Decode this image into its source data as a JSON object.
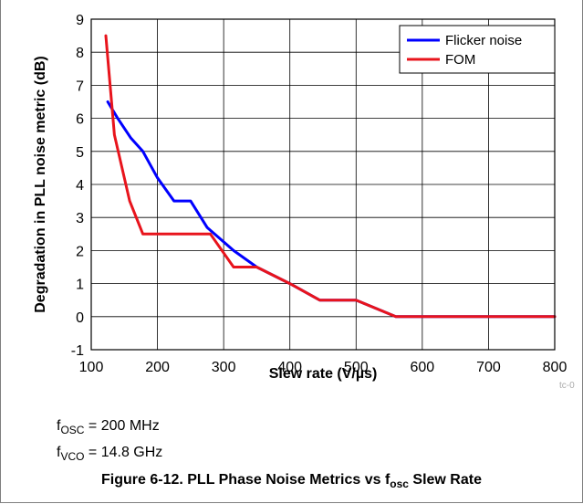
{
  "chart_data": {
    "type": "line",
    "xlabel": "Slew rate (V/µs)",
    "ylabel": "Degradation in PLL noise metric (dB)",
    "xlim": [
      100,
      800
    ],
    "ylim": [
      -1,
      9
    ],
    "xticks": [
      100,
      200,
      300,
      400,
      500,
      600,
      700,
      800
    ],
    "yticks": [
      -1,
      0,
      1,
      2,
      3,
      4,
      5,
      6,
      7,
      8,
      9
    ],
    "grid": true,
    "legend_position": "top-right",
    "series": [
      {
        "name": "Flicker noise",
        "color": "#0000ff",
        "x": [
          125,
          140,
          160,
          178,
          200,
          225,
          250,
          275,
          315,
          350,
          400,
          445,
          500,
          560,
          600,
          700,
          800
        ],
        "y": [
          6.5,
          6.0,
          5.4,
          5.0,
          4.2,
          3.5,
          3.5,
          2.7,
          2.0,
          1.5,
          1.0,
          0.5,
          0.5,
          0.0,
          0.0,
          0.0,
          0.0
        ]
      },
      {
        "name": "FOM",
        "color": "#e8141c",
        "x": [
          122,
          135,
          158,
          178,
          200,
          225,
          250,
          280,
          315,
          350,
          400,
          445,
          500,
          560,
          600,
          700,
          800
        ],
        "y": [
          8.5,
          5.5,
          3.5,
          2.5,
          2.5,
          2.5,
          2.5,
          2.5,
          1.5,
          1.5,
          1.0,
          0.5,
          0.5,
          0.0,
          0.0,
          0.0,
          0.0
        ]
      }
    ]
  },
  "tag": "tc-0",
  "conditions": [
    {
      "symbol": "f",
      "sub": "OSC",
      "value": " = 200 MHz"
    },
    {
      "symbol": "f",
      "sub": "VCO",
      "value": " = 14.8 GHz"
    }
  ],
  "caption": {
    "prefix": "Figure 6-12. PLL Phase Noise Metrics vs f",
    "sub": "osc",
    "suffix": " Slew Rate"
  }
}
